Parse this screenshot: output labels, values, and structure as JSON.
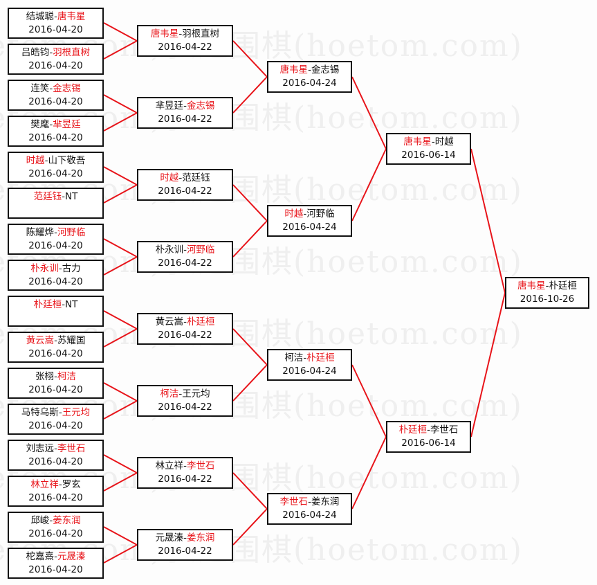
{
  "watermark": "弘通围棋(hoetom.com)",
  "colors": {
    "winner": "#e8141a",
    "line": "#e8141a",
    "border": "#111111"
  },
  "rounds": [
    [
      {
        "p1": "结城聪",
        "p2": "唐韦星",
        "winner": 2,
        "date": "2016-04-20"
      },
      {
        "p1": "吕皓钧",
        "p2": "羽根直树",
        "winner": 2,
        "date": "2016-04-20"
      },
      {
        "p1": "连笑",
        "p2": "金志锡",
        "winner": 2,
        "date": "2016-04-20"
      },
      {
        "p1": "樊麾",
        "p2": "芈昱廷",
        "winner": 2,
        "date": "2016-04-20"
      },
      {
        "p1": "时越",
        "p2": "山下敬吾",
        "winner": 1,
        "date": "2016-04-20"
      },
      {
        "p1": "范廷钰",
        "p2": "NT",
        "winner": 1,
        "date": ""
      },
      {
        "p1": "陈耀烨",
        "p2": "河野临",
        "winner": 2,
        "date": "2016-04-20"
      },
      {
        "p1": "朴永训",
        "p2": "古力",
        "winner": 1,
        "date": "2016-04-20"
      },
      {
        "p1": "朴廷桓",
        "p2": "NT",
        "winner": 1,
        "date": ""
      },
      {
        "p1": "黄云嵩",
        "p2": "苏耀国",
        "winner": 1,
        "date": "2016-04-20"
      },
      {
        "p1": "张栩",
        "p2": "柯洁",
        "winner": 2,
        "date": "2016-04-20"
      },
      {
        "p1": "马特乌斯",
        "p2": "王元均",
        "winner": 2,
        "date": "2016-04-20"
      },
      {
        "p1": "刘志远",
        "p2": "李世石",
        "winner": 2,
        "date": "2016-04-20"
      },
      {
        "p1": "林立祥",
        "p2": "罗玄",
        "winner": 1,
        "date": "2016-04-20"
      },
      {
        "p1": "邱峻",
        "p2": "姜东润",
        "winner": 2,
        "date": "2016-04-20"
      },
      {
        "p1": "柁嘉熹",
        "p2": "元晟溱",
        "winner": 2,
        "date": "2016-04-20"
      }
    ],
    [
      {
        "p1": "唐韦星",
        "p2": "羽根直树",
        "winner": 1,
        "date": "2016-04-22"
      },
      {
        "p1": "芈昱廷",
        "p2": "金志锡",
        "winner": 2,
        "date": "2016-04-22"
      },
      {
        "p1": "时越",
        "p2": "范廷钰",
        "winner": 1,
        "date": "2016-04-22"
      },
      {
        "p1": "朴永训",
        "p2": "河野临",
        "winner": 2,
        "date": "2016-04-22"
      },
      {
        "p1": "黄云嵩",
        "p2": "朴廷桓",
        "winner": 2,
        "date": "2016-04-22"
      },
      {
        "p1": "柯洁",
        "p2": "王元均",
        "winner": 1,
        "date": "2016-04-22"
      },
      {
        "p1": "林立祥",
        "p2": "李世石",
        "winner": 2,
        "date": "2016-04-22"
      },
      {
        "p1": "元晟溱",
        "p2": "姜东润",
        "winner": 2,
        "date": "2016-04-22"
      }
    ],
    [
      {
        "p1": "唐韦星",
        "p2": "金志锡",
        "winner": 1,
        "date": "2016-04-24"
      },
      {
        "p1": "时越",
        "p2": "河野临",
        "winner": 1,
        "date": "2016-04-24"
      },
      {
        "p1": "柯洁",
        "p2": "朴廷桓",
        "winner": 2,
        "date": "2016-04-24"
      },
      {
        "p1": "李世石",
        "p2": "姜东润",
        "winner": 1,
        "date": "2016-04-24"
      }
    ],
    [
      {
        "p1": "唐韦星",
        "p2": "时越",
        "winner": 1,
        "date": "2016-06-14"
      },
      {
        "p1": "朴廷桓",
        "p2": "李世石",
        "winner": 1,
        "date": "2016-06-14"
      }
    ],
    [
      {
        "p1": "唐韦星",
        "p2": "朴廷桓",
        "winner": 1,
        "date": "2016-10-26"
      }
    ]
  ]
}
